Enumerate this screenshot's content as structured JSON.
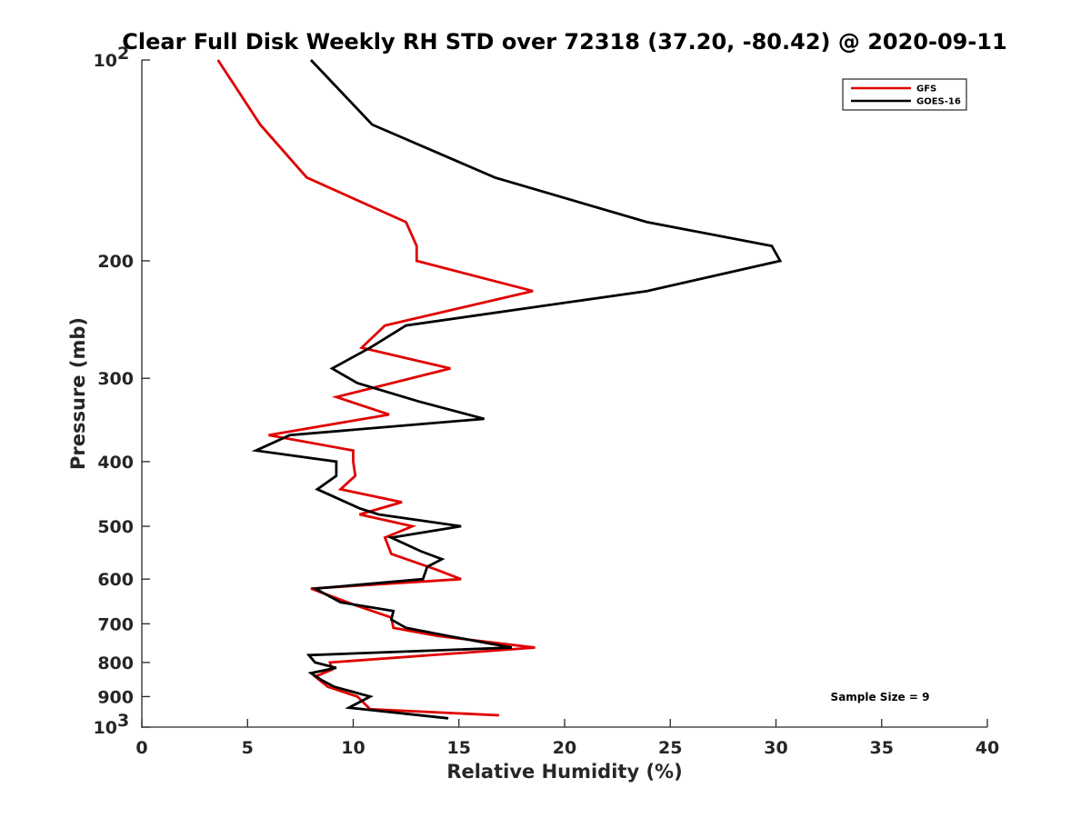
{
  "chart_data": {
    "type": "line",
    "title": "Clear Full Disk Weekly RH STD over 72318 (37.20, -80.42) @ 2020-09-11",
    "xlabel": "Relative Humidity (%)",
    "ylabel": "Pressure (mb)",
    "xlim": [
      0,
      40
    ],
    "ylim": [
      100,
      1000
    ],
    "yscale": "log",
    "y_reversed": true,
    "grid": false,
    "legend_position": "top-right",
    "x_ticks": [
      0,
      5,
      10,
      15,
      20,
      25,
      30,
      35,
      40
    ],
    "y_ticks": [
      {
        "value": 100,
        "label": "10",
        "sup": "2"
      },
      {
        "value": 200,
        "label": "200",
        "sup": ""
      },
      {
        "value": 300,
        "label": "300",
        "sup": ""
      },
      {
        "value": 400,
        "label": "400",
        "sup": ""
      },
      {
        "value": 500,
        "label": "500",
        "sup": ""
      },
      {
        "value": 600,
        "label": "600",
        "sup": ""
      },
      {
        "value": 700,
        "label": "700",
        "sup": ""
      },
      {
        "value": 800,
        "label": "800",
        "sup": ""
      },
      {
        "value": 900,
        "label": "900",
        "sup": ""
      },
      {
        "value": 1000,
        "label": "10",
        "sup": "3"
      }
    ],
    "annotation": "Sample Size = 9",
    "series": [
      {
        "name": "GFS",
        "color": "#e00000",
        "points": [
          [
            3.6,
            100
          ],
          [
            5.6,
            125
          ],
          [
            7.8,
            150
          ],
          [
            12.5,
            175
          ],
          [
            13.0,
            190
          ],
          [
            13.0,
            200
          ],
          [
            18.5,
            222
          ],
          [
            11.5,
            250
          ],
          [
            10.4,
            270
          ],
          [
            14.6,
            290
          ],
          [
            9.2,
            320
          ],
          [
            11.7,
            340
          ],
          [
            6.0,
            365
          ],
          [
            10.0,
            385
          ],
          [
            10.0,
            400
          ],
          [
            10.1,
            420
          ],
          [
            9.4,
            440
          ],
          [
            12.3,
            460
          ],
          [
            10.3,
            480
          ],
          [
            12.8,
            500
          ],
          [
            11.5,
            520
          ],
          [
            11.8,
            550
          ],
          [
            13.9,
            580
          ],
          [
            15.1,
            600
          ],
          [
            8.0,
            620
          ],
          [
            10.0,
            655
          ],
          [
            11.8,
            685
          ],
          [
            11.9,
            710
          ],
          [
            14.0,
            730
          ],
          [
            18.6,
            760
          ],
          [
            8.9,
            800
          ],
          [
            9.0,
            820
          ],
          [
            8.2,
            840
          ],
          [
            8.8,
            870
          ],
          [
            10.2,
            900
          ],
          [
            10.8,
            940
          ],
          [
            16.9,
            960
          ]
        ]
      },
      {
        "name": "GOES-16",
        "color": "#000000",
        "points": [
          [
            8.0,
            100
          ],
          [
            10.9,
            125
          ],
          [
            16.7,
            150
          ],
          [
            23.9,
            175
          ],
          [
            29.8,
            190
          ],
          [
            30.2,
            200
          ],
          [
            23.9,
            222
          ],
          [
            12.5,
            250
          ],
          [
            10.8,
            270
          ],
          [
            9.0,
            290
          ],
          [
            10.2,
            305
          ],
          [
            13.1,
            325
          ],
          [
            16.2,
            345
          ],
          [
            7.0,
            365
          ],
          [
            5.4,
            385
          ],
          [
            9.2,
            400
          ],
          [
            9.2,
            420
          ],
          [
            8.3,
            440
          ],
          [
            10.3,
            470
          ],
          [
            11.2,
            480
          ],
          [
            15.1,
            500
          ],
          [
            11.8,
            520
          ],
          [
            13.2,
            545
          ],
          [
            14.2,
            560
          ],
          [
            13.5,
            575
          ],
          [
            13.3,
            600
          ],
          [
            8.2,
            620
          ],
          [
            9.4,
            650
          ],
          [
            11.9,
            670
          ],
          [
            11.8,
            690
          ],
          [
            12.5,
            710
          ],
          [
            14.5,
            730
          ],
          [
            17.5,
            760
          ],
          [
            7.9,
            780
          ],
          [
            8.2,
            800
          ],
          [
            9.2,
            815
          ],
          [
            8.0,
            830
          ],
          [
            8.5,
            850
          ],
          [
            9.1,
            870
          ],
          [
            10.8,
            900
          ],
          [
            9.8,
            935
          ],
          [
            14.5,
            970
          ]
        ]
      }
    ]
  }
}
